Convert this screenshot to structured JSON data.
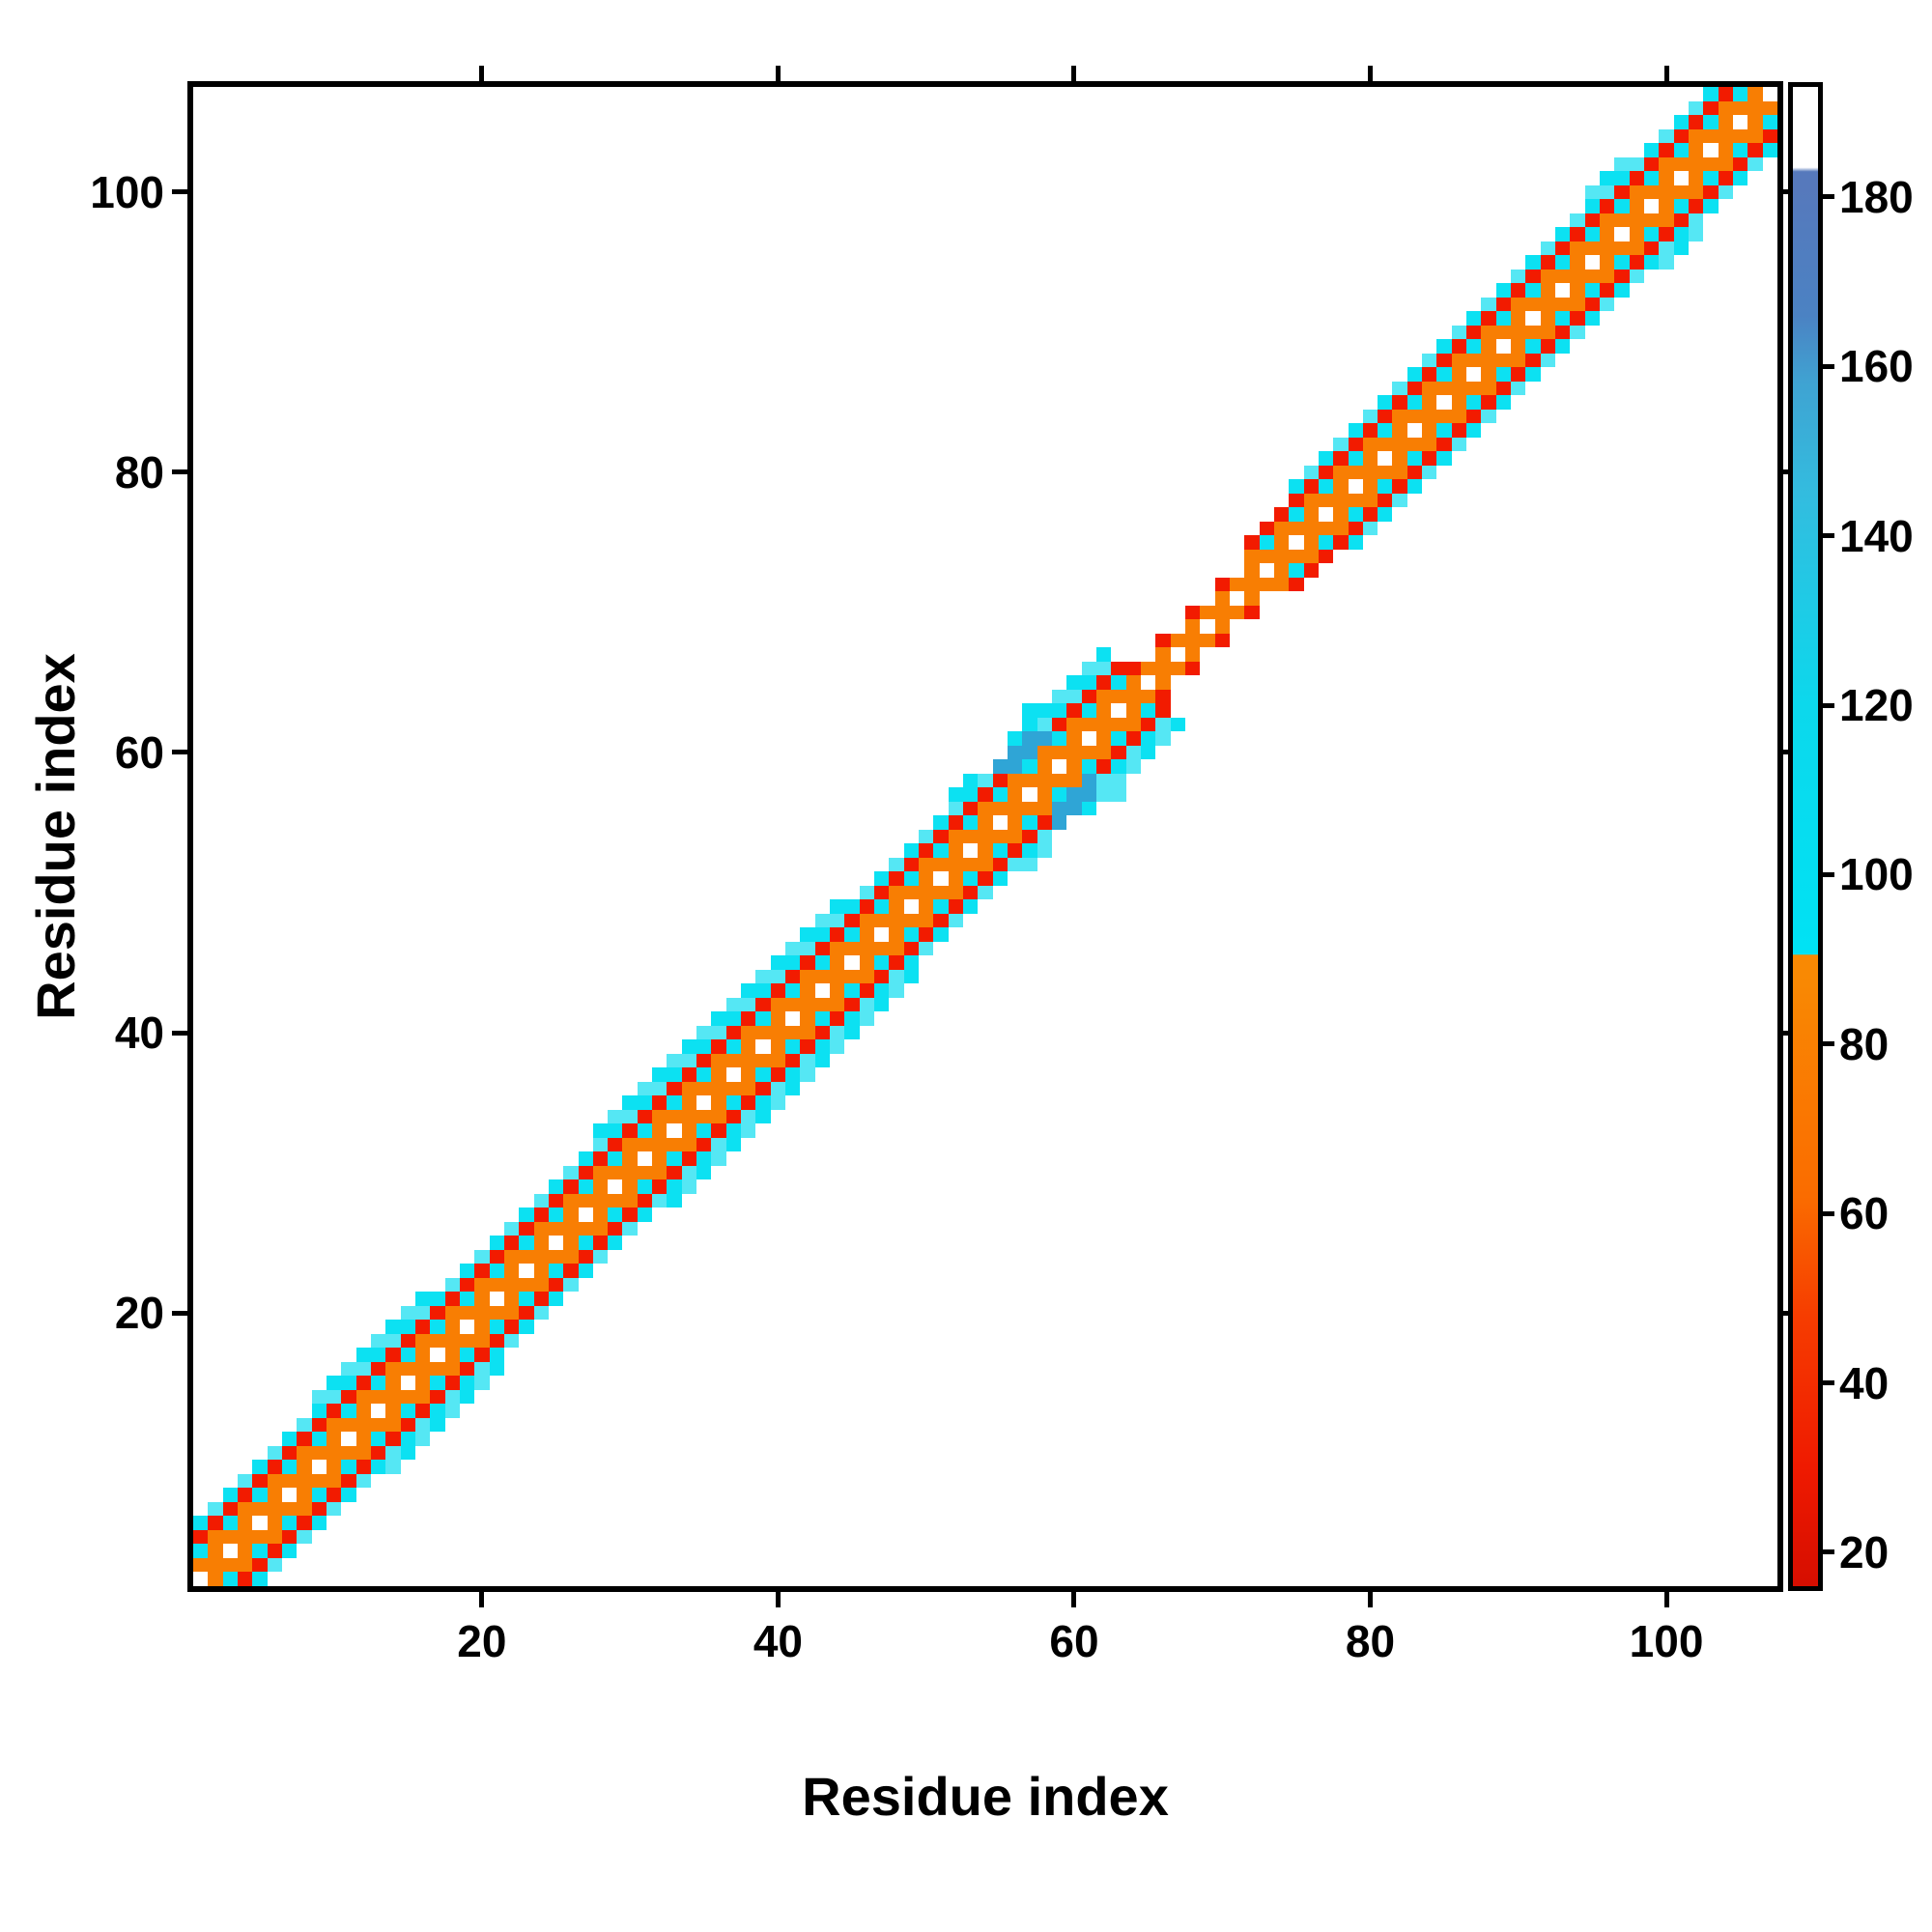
{
  "chart_data": {
    "type": "heatmap",
    "title": "",
    "xlabel": "Residue index",
    "ylabel": "Residue index",
    "x_ticks": [
      20,
      40,
      60,
      80,
      100
    ],
    "y_ticks": [
      20,
      40,
      60,
      80,
      100
    ],
    "n_residues": 107,
    "axis_range": [
      0.5,
      107.5
    ],
    "grid": false,
    "legend_position": "right-colorbar",
    "colorbar": {
      "ticks": [
        20,
        40,
        60,
        80,
        100,
        120,
        140,
        160,
        180
      ],
      "domain": [
        16,
        193
      ],
      "stops": [
        {
          "v": 16,
          "c": "#d60e00"
        },
        {
          "v": 30,
          "c": "#ef1a00"
        },
        {
          "v": 48,
          "c": "#f63d00"
        },
        {
          "v": 62,
          "c": "#fa6c00"
        },
        {
          "v": 88,
          "c": "#f98903"
        },
        {
          "v": 90.5,
          "c": "#f98903"
        },
        {
          "v": 90.6,
          "c": "#00e2f4"
        },
        {
          "v": 120,
          "c": "#0cd8ec"
        },
        {
          "v": 145,
          "c": "#33bcdf"
        },
        {
          "v": 158,
          "c": "#3fa3d2"
        },
        {
          "v": 166,
          "c": "#4b82c3"
        },
        {
          "v": 181,
          "c": "#5679bc"
        },
        {
          "v": 183,
          "c": "#5679bc"
        },
        {
          "v": 183.5,
          "c": "#ffffff"
        },
        {
          "v": 193,
          "c": "#ffffff"
        }
      ]
    },
    "palette": {
      "red": "#f21b00",
      "orange": "#f87e03",
      "cyan": "#0ce1f2",
      "cyan_alt": "#55e7f4",
      "steel": "#2fa5d6",
      "white": "#ffffff"
    },
    "value_key_approx": {
      "red": 25,
      "orange": 70,
      "cyan": 100,
      "cyan_alt": 95,
      "steel": 150,
      "white_diagonal": 190
    },
    "band": {
      "default_max_offset": 4,
      "offset_rules": {
        "0": {
          "odd": "white",
          "even": "orange"
        },
        "1": {
          "odd": "orange",
          "even": "orange"
        },
        "2": {
          "odd": "cyan",
          "even": "orange"
        },
        "3": {
          "odd": "red",
          "even": "red"
        },
        "4": {
          "odd": "cyan",
          "even": "cyan_alt"
        },
        "5": {
          "odd": "cyan_alt",
          "even": "cyan"
        }
      },
      "hinge_rules": {
        "0": {
          "odd": "white",
          "even": "orange"
        },
        "1": {
          "odd": "orange",
          "even": "orange"
        },
        "2": {
          "odd": "white",
          "even": "red"
        }
      },
      "segments": [
        {
          "from": 1,
          "to": 8,
          "max_offset": 4
        },
        {
          "from": 9,
          "to": 16,
          "max_offset": 5
        },
        {
          "from": 17,
          "to": 27,
          "max_offset": 4
        },
        {
          "from": 28,
          "to": 44,
          "max_offset": 5
        },
        {
          "from": 45,
          "to": 55,
          "max_offset": 4
        },
        {
          "from": 56,
          "to": 62,
          "max_offset": 5
        },
        {
          "from": 63,
          "to": 63,
          "max_offset": 3
        },
        {
          "from": 64,
          "to": 71,
          "max_offset": 2,
          "hinge": true
        },
        {
          "from": 72,
          "to": 74,
          "max_offset": 3
        },
        {
          "from": 75,
          "to": 94,
          "max_offset": 4
        },
        {
          "from": 95,
          "to": 97,
          "max_offset": 5
        },
        {
          "from": 98,
          "to": 107,
          "max_offset": 4
        }
      ],
      "steel_cells": [
        [
          59,
          55
        ],
        [
          59,
          56
        ],
        [
          60,
          56
        ],
        [
          60,
          57
        ],
        [
          61,
          57
        ],
        [
          61,
          58
        ]
      ],
      "extra_cyan_cells": [
        [
          57,
          52
        ],
        [
          58,
          53
        ],
        [
          62,
          57
        ],
        [
          63,
          57
        ],
        [
          63,
          58
        ]
      ]
    }
  }
}
